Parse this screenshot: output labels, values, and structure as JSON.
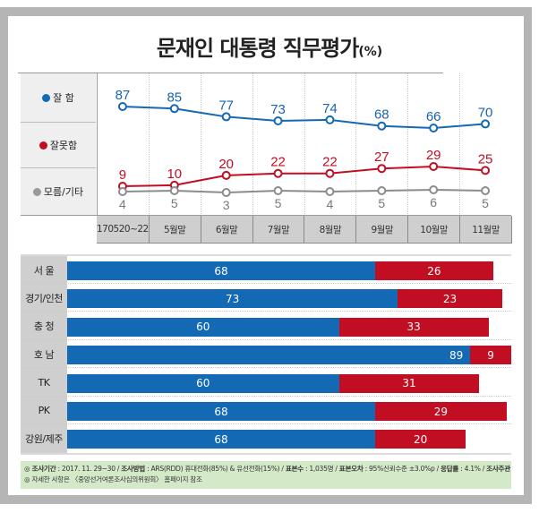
{
  "title": "문재인 대통령 직무평가",
  "title_unit": "(%)",
  "colors": {
    "good": "#1469b5",
    "bad": "#c10e22",
    "other": "#8c8c8c"
  },
  "legend": [
    {
      "label": "잘 함",
      "color": "#1469b5"
    },
    {
      "label": "잘못함",
      "color": "#c10e22"
    },
    {
      "label": "모름/기타",
      "color": "#9a9a9a"
    }
  ],
  "chart_data": [
    {
      "type": "line",
      "title": "문재인 대통령 직무평가 (%)",
      "categories": [
        "170520~22",
        "5월말",
        "6월말",
        "7월말",
        "8월말",
        "9월말",
        "10월말",
        "11월말"
      ],
      "series": [
        {
          "name": "잘 함",
          "values": [
            87,
            85,
            77,
            73,
            74,
            68,
            66,
            70
          ]
        },
        {
          "name": "잘못함",
          "values": [
            9,
            10,
            20,
            22,
            22,
            27,
            29,
            25
          ]
        },
        {
          "name": "모름/기타",
          "values": [
            4,
            5,
            3,
            5,
            4,
            5,
            6,
            5
          ]
        }
      ],
      "legend": "left",
      "grid": true
    },
    {
      "type": "bar",
      "orientation": "horizontal-stacked",
      "categories": [
        "서 울",
        "경기/인천",
        "충 청",
        "호 남",
        "TK",
        "PK",
        "강원/제주"
      ],
      "series": [
        {
          "name": "잘 함",
          "values": [
            68,
            73,
            60,
            89,
            60,
            68,
            68
          ]
        },
        {
          "name": "잘못함",
          "values": [
            26,
            23,
            33,
            9,
            31,
            29,
            20
          ]
        }
      ],
      "xlim": [
        0,
        100
      ]
    }
  ],
  "footer": {
    "line1": [
      {
        "k": "◎ 조사기간",
        "v": " : 2017. 11. 29~30 / "
      },
      {
        "k": "조사방법",
        "v": " : ARS(RDD) 휴대전화(85%) & 유선전화(15%) / "
      },
      {
        "k": "표본수",
        "v": " : 1,035명 / "
      },
      {
        "k": "표본오차",
        "v": " : 95%신뢰수준 ±3.0%p / "
      },
      {
        "k": "응답률",
        "v": " : 4.1% / "
      },
      {
        "k": "조사주관",
        "v": " : 리서치뷰"
      }
    ],
    "line2": "◎ 자세한 사항은 〈중앙선거여론조사심의위원회〉 홈페이지 참조"
  }
}
